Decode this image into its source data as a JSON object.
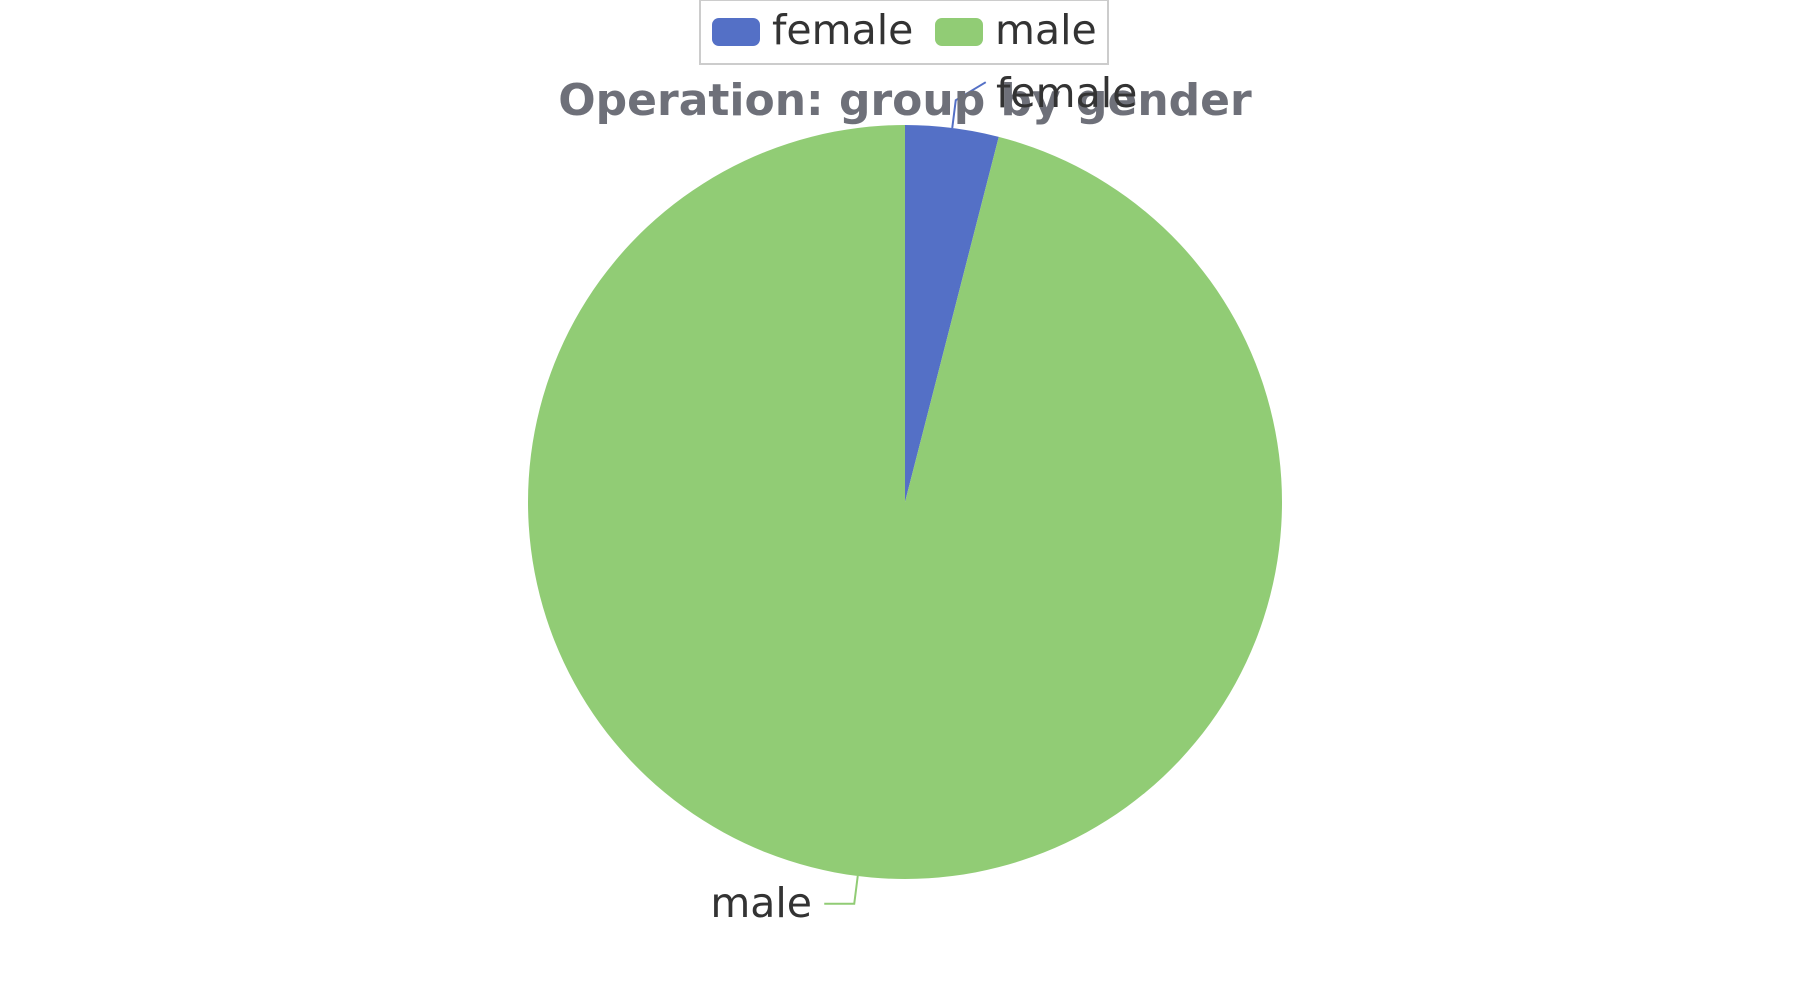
{
  "chart_data": {
    "type": "pie",
    "title": "Operation: group by gender",
    "legend": {
      "placement": "top-center",
      "items": [
        "female",
        "male"
      ]
    },
    "series": [
      {
        "values": [
          {
            "name": "female",
            "value": 4,
            "color": "#5470c6"
          },
          {
            "name": "male",
            "value": 96,
            "color": "#91cc75"
          }
        ]
      }
    ],
    "labels": [
      "female",
      "male"
    ],
    "start_angle": "top",
    "direction": "clockwise"
  }
}
